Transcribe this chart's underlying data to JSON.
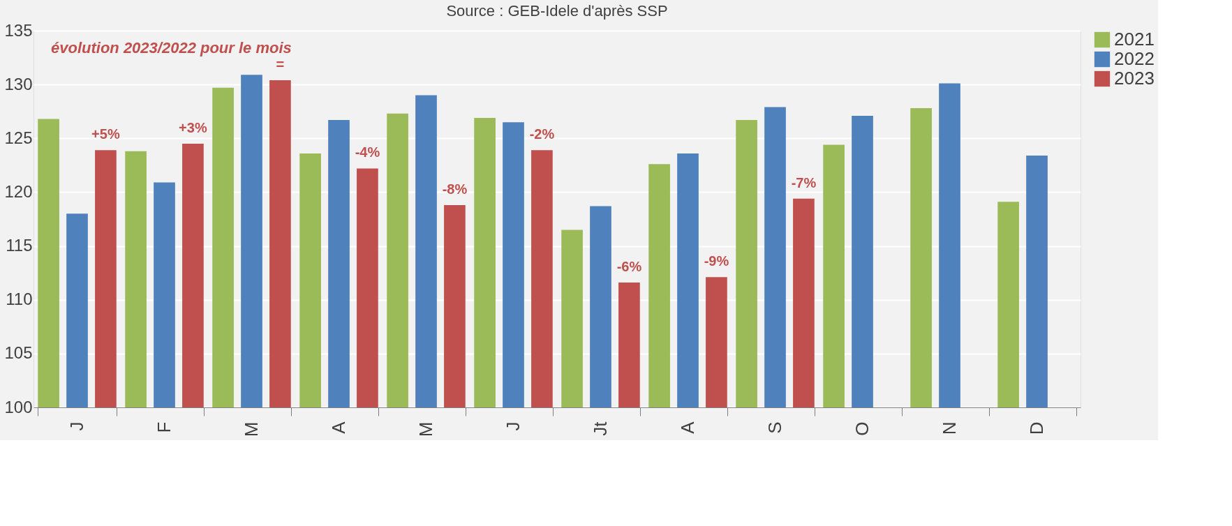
{
  "chart_data": {
    "type": "bar",
    "categories": [
      "J",
      "F",
      "M",
      "A",
      "M",
      "J",
      "Jt",
      "A",
      "S",
      "O",
      "N",
      "D"
    ],
    "series": [
      {
        "name": "2021",
        "color": "#9bbb59",
        "values": [
          126.8,
          123.8,
          129.7,
          123.6,
          127.3,
          126.9,
          116.5,
          122.6,
          126.7,
          124.4,
          127.8,
          119.1
        ]
      },
      {
        "name": "2022",
        "color": "#4f81bd",
        "values": [
          118.0,
          120.9,
          130.9,
          126.7,
          129.0,
          126.5,
          118.7,
          123.6,
          127.9,
          127.1,
          130.1,
          123.4
        ]
      },
      {
        "name": "2023",
        "color": "#c0504d",
        "values": [
          123.9,
          124.5,
          130.4,
          122.2,
          118.8,
          123.9,
          111.6,
          112.1,
          119.4,
          null,
          null,
          null
        ]
      }
    ],
    "ylim": [
      100,
      135
    ],
    "yticks": [
      100,
      105,
      110,
      115,
      120,
      125,
      130,
      135
    ],
    "grid": "y",
    "legend": "right",
    "annotations": [
      "Source : GEB-Idele d'après SSP",
      "évolution 2023/2022 pour le mois",
      "+5%",
      "+3%",
      "=",
      "-4%",
      "-8%",
      "-2%",
      "-6%",
      "-9%",
      "-7%"
    ]
  }
}
